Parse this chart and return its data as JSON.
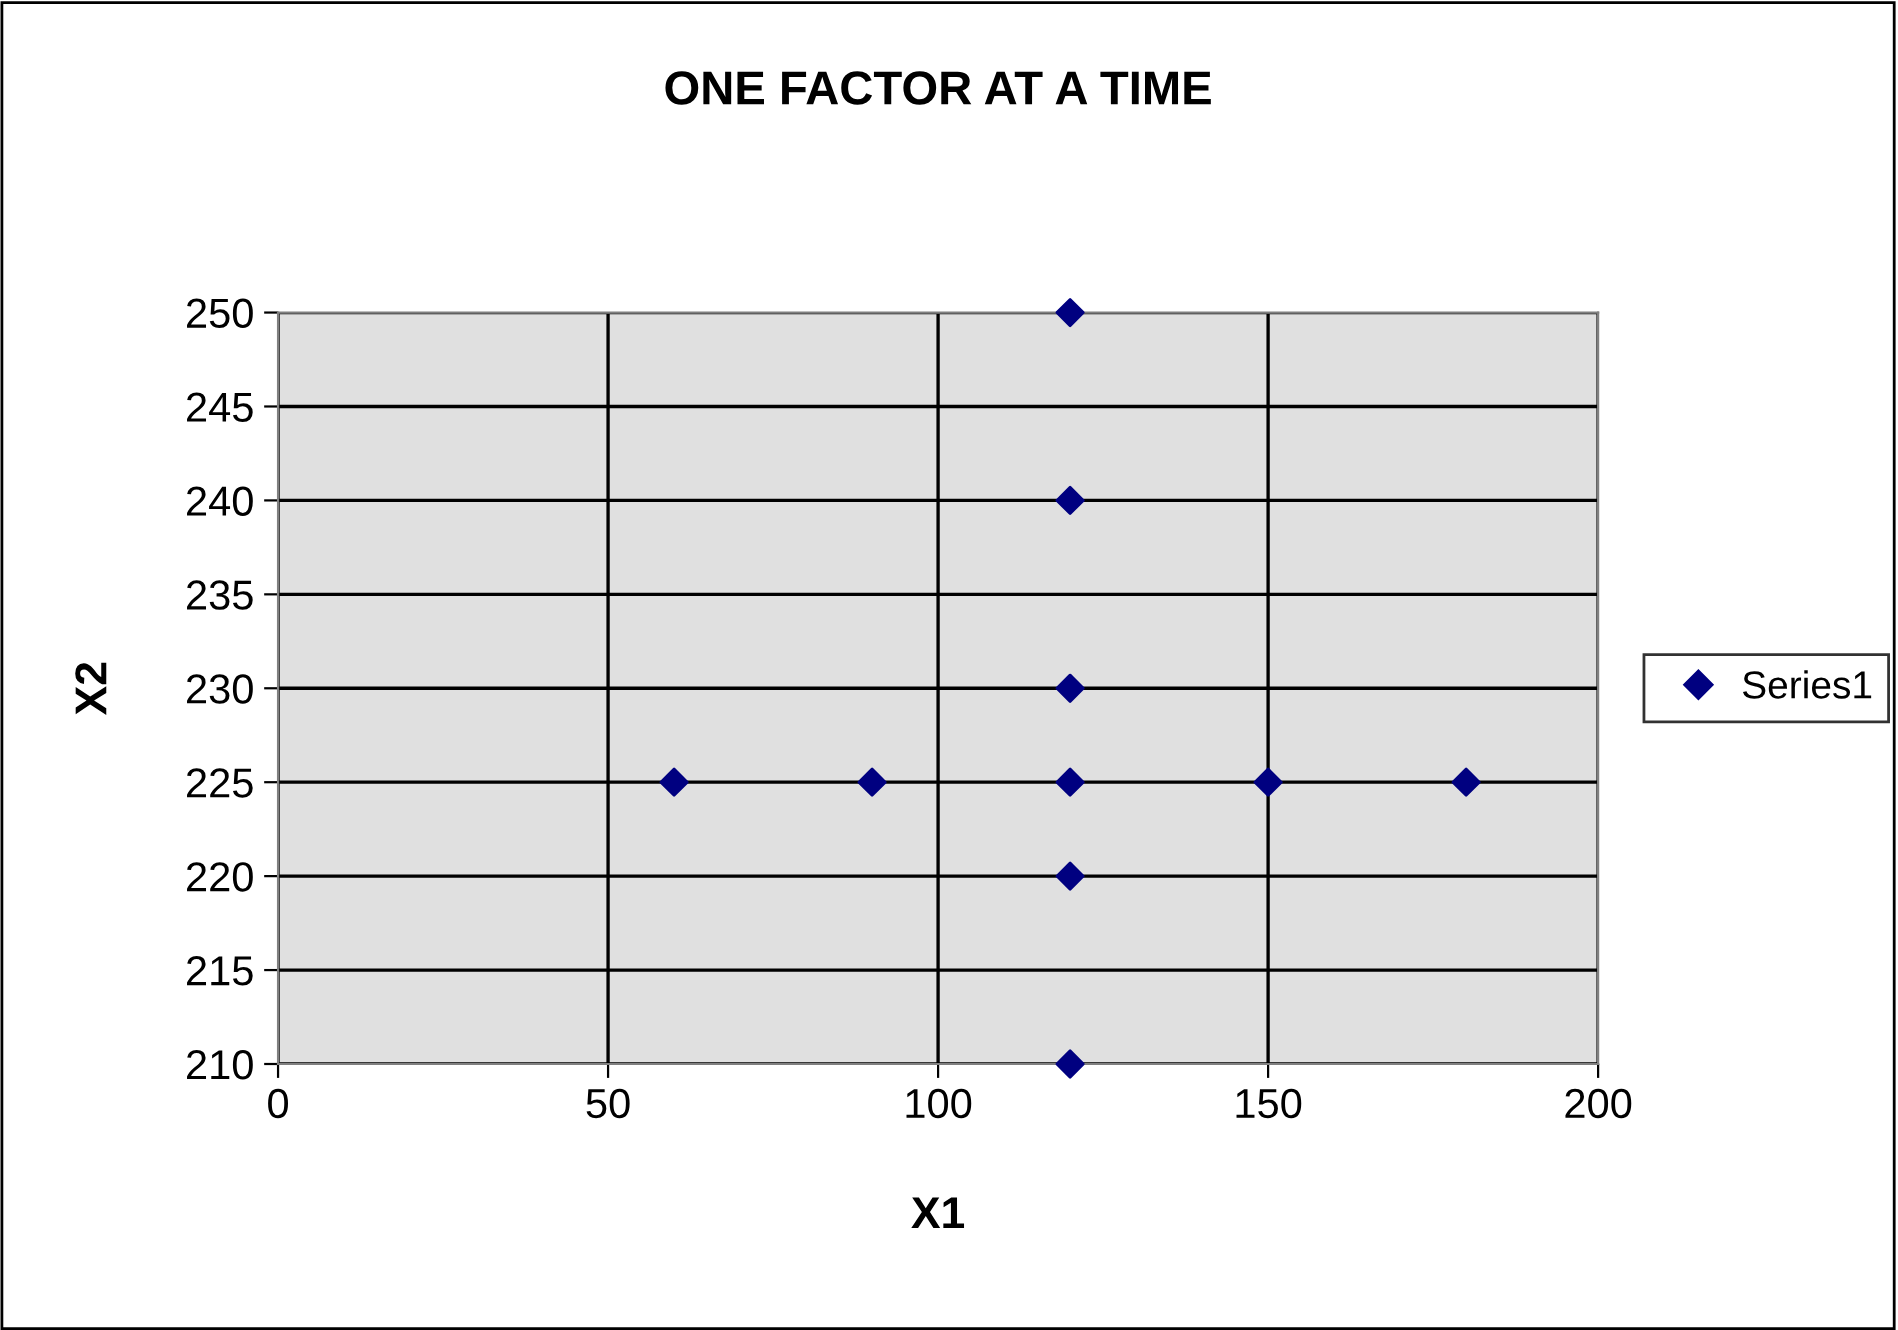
{
  "chart_data": {
    "type": "scatter",
    "title": "ONE FACTOR AT A TIME",
    "xlabel": "X1",
    "ylabel": "X2",
    "x": [
      60,
      90,
      120,
      150,
      180,
      120,
      120,
      120,
      120,
      120
    ],
    "series": [
      {
        "name": "Series1",
        "color": "#000080",
        "values": [
          225,
          225,
          225,
          225,
          225,
          210,
          220,
          230,
          240,
          250
        ]
      }
    ],
    "xlim": [
      0,
      200
    ],
    "xticks": [
      0,
      50,
      100,
      150,
      200
    ],
    "ylim": [
      210,
      250
    ],
    "yticks": [
      210,
      215,
      220,
      225,
      230,
      235,
      240,
      245,
      250
    ],
    "grid": true,
    "legend": "right",
    "marker": "diamond"
  }
}
